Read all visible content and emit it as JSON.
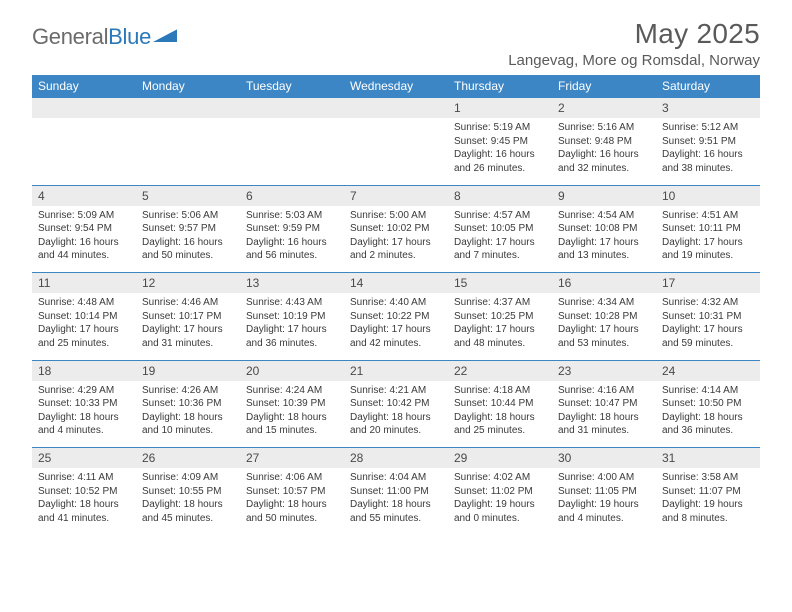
{
  "logo": {
    "text1": "General",
    "text2": "Blue"
  },
  "title": "May 2025",
  "location": "Langevag, More og Romsdal, Norway",
  "colors": {
    "header_bg": "#3c86c5",
    "header_text": "#ffffff",
    "daynum_bg": "#ececec",
    "border_top": "#3c86c5",
    "text": "#3a3a3a",
    "title_text": "#5a5a5a",
    "logo_gray": "#6b6b6b",
    "logo_blue": "#2b79b9"
  },
  "typography": {
    "title_fontsize": 28,
    "location_fontsize": 15,
    "dayhead_fontsize": 12,
    "daynum_fontsize": 12,
    "detail_fontsize": 10
  },
  "day_headers": [
    "Sunday",
    "Monday",
    "Tuesday",
    "Wednesday",
    "Thursday",
    "Friday",
    "Saturday"
  ],
  "weeks": [
    [
      null,
      null,
      null,
      null,
      {
        "n": "1",
        "sr": "Sunrise: 5:19 AM",
        "ss": "Sunset: 9:45 PM",
        "dl": "Daylight: 16 hours and 26 minutes."
      },
      {
        "n": "2",
        "sr": "Sunrise: 5:16 AM",
        "ss": "Sunset: 9:48 PM",
        "dl": "Daylight: 16 hours and 32 minutes."
      },
      {
        "n": "3",
        "sr": "Sunrise: 5:12 AM",
        "ss": "Sunset: 9:51 PM",
        "dl": "Daylight: 16 hours and 38 minutes."
      }
    ],
    [
      {
        "n": "4",
        "sr": "Sunrise: 5:09 AM",
        "ss": "Sunset: 9:54 PM",
        "dl": "Daylight: 16 hours and 44 minutes."
      },
      {
        "n": "5",
        "sr": "Sunrise: 5:06 AM",
        "ss": "Sunset: 9:57 PM",
        "dl": "Daylight: 16 hours and 50 minutes."
      },
      {
        "n": "6",
        "sr": "Sunrise: 5:03 AM",
        "ss": "Sunset: 9:59 PM",
        "dl": "Daylight: 16 hours and 56 minutes."
      },
      {
        "n": "7",
        "sr": "Sunrise: 5:00 AM",
        "ss": "Sunset: 10:02 PM",
        "dl": "Daylight: 17 hours and 2 minutes."
      },
      {
        "n": "8",
        "sr": "Sunrise: 4:57 AM",
        "ss": "Sunset: 10:05 PM",
        "dl": "Daylight: 17 hours and 7 minutes."
      },
      {
        "n": "9",
        "sr": "Sunrise: 4:54 AM",
        "ss": "Sunset: 10:08 PM",
        "dl": "Daylight: 17 hours and 13 minutes."
      },
      {
        "n": "10",
        "sr": "Sunrise: 4:51 AM",
        "ss": "Sunset: 10:11 PM",
        "dl": "Daylight: 17 hours and 19 minutes."
      }
    ],
    [
      {
        "n": "11",
        "sr": "Sunrise: 4:48 AM",
        "ss": "Sunset: 10:14 PM",
        "dl": "Daylight: 17 hours and 25 minutes."
      },
      {
        "n": "12",
        "sr": "Sunrise: 4:46 AM",
        "ss": "Sunset: 10:17 PM",
        "dl": "Daylight: 17 hours and 31 minutes."
      },
      {
        "n": "13",
        "sr": "Sunrise: 4:43 AM",
        "ss": "Sunset: 10:19 PM",
        "dl": "Daylight: 17 hours and 36 minutes."
      },
      {
        "n": "14",
        "sr": "Sunrise: 4:40 AM",
        "ss": "Sunset: 10:22 PM",
        "dl": "Daylight: 17 hours and 42 minutes."
      },
      {
        "n": "15",
        "sr": "Sunrise: 4:37 AM",
        "ss": "Sunset: 10:25 PM",
        "dl": "Daylight: 17 hours and 48 minutes."
      },
      {
        "n": "16",
        "sr": "Sunrise: 4:34 AM",
        "ss": "Sunset: 10:28 PM",
        "dl": "Daylight: 17 hours and 53 minutes."
      },
      {
        "n": "17",
        "sr": "Sunrise: 4:32 AM",
        "ss": "Sunset: 10:31 PM",
        "dl": "Daylight: 17 hours and 59 minutes."
      }
    ],
    [
      {
        "n": "18",
        "sr": "Sunrise: 4:29 AM",
        "ss": "Sunset: 10:33 PM",
        "dl": "Daylight: 18 hours and 4 minutes."
      },
      {
        "n": "19",
        "sr": "Sunrise: 4:26 AM",
        "ss": "Sunset: 10:36 PM",
        "dl": "Daylight: 18 hours and 10 minutes."
      },
      {
        "n": "20",
        "sr": "Sunrise: 4:24 AM",
        "ss": "Sunset: 10:39 PM",
        "dl": "Daylight: 18 hours and 15 minutes."
      },
      {
        "n": "21",
        "sr": "Sunrise: 4:21 AM",
        "ss": "Sunset: 10:42 PM",
        "dl": "Daylight: 18 hours and 20 minutes."
      },
      {
        "n": "22",
        "sr": "Sunrise: 4:18 AM",
        "ss": "Sunset: 10:44 PM",
        "dl": "Daylight: 18 hours and 25 minutes."
      },
      {
        "n": "23",
        "sr": "Sunrise: 4:16 AM",
        "ss": "Sunset: 10:47 PM",
        "dl": "Daylight: 18 hours and 31 minutes."
      },
      {
        "n": "24",
        "sr": "Sunrise: 4:14 AM",
        "ss": "Sunset: 10:50 PM",
        "dl": "Daylight: 18 hours and 36 minutes."
      }
    ],
    [
      {
        "n": "25",
        "sr": "Sunrise: 4:11 AM",
        "ss": "Sunset: 10:52 PM",
        "dl": "Daylight: 18 hours and 41 minutes."
      },
      {
        "n": "26",
        "sr": "Sunrise: 4:09 AM",
        "ss": "Sunset: 10:55 PM",
        "dl": "Daylight: 18 hours and 45 minutes."
      },
      {
        "n": "27",
        "sr": "Sunrise: 4:06 AM",
        "ss": "Sunset: 10:57 PM",
        "dl": "Daylight: 18 hours and 50 minutes."
      },
      {
        "n": "28",
        "sr": "Sunrise: 4:04 AM",
        "ss": "Sunset: 11:00 PM",
        "dl": "Daylight: 18 hours and 55 minutes."
      },
      {
        "n": "29",
        "sr": "Sunrise: 4:02 AM",
        "ss": "Sunset: 11:02 PM",
        "dl": "Daylight: 19 hours and 0 minutes."
      },
      {
        "n": "30",
        "sr": "Sunrise: 4:00 AM",
        "ss": "Sunset: 11:05 PM",
        "dl": "Daylight: 19 hours and 4 minutes."
      },
      {
        "n": "31",
        "sr": "Sunrise: 3:58 AM",
        "ss": "Sunset: 11:07 PM",
        "dl": "Daylight: 19 hours and 8 minutes."
      }
    ]
  ]
}
